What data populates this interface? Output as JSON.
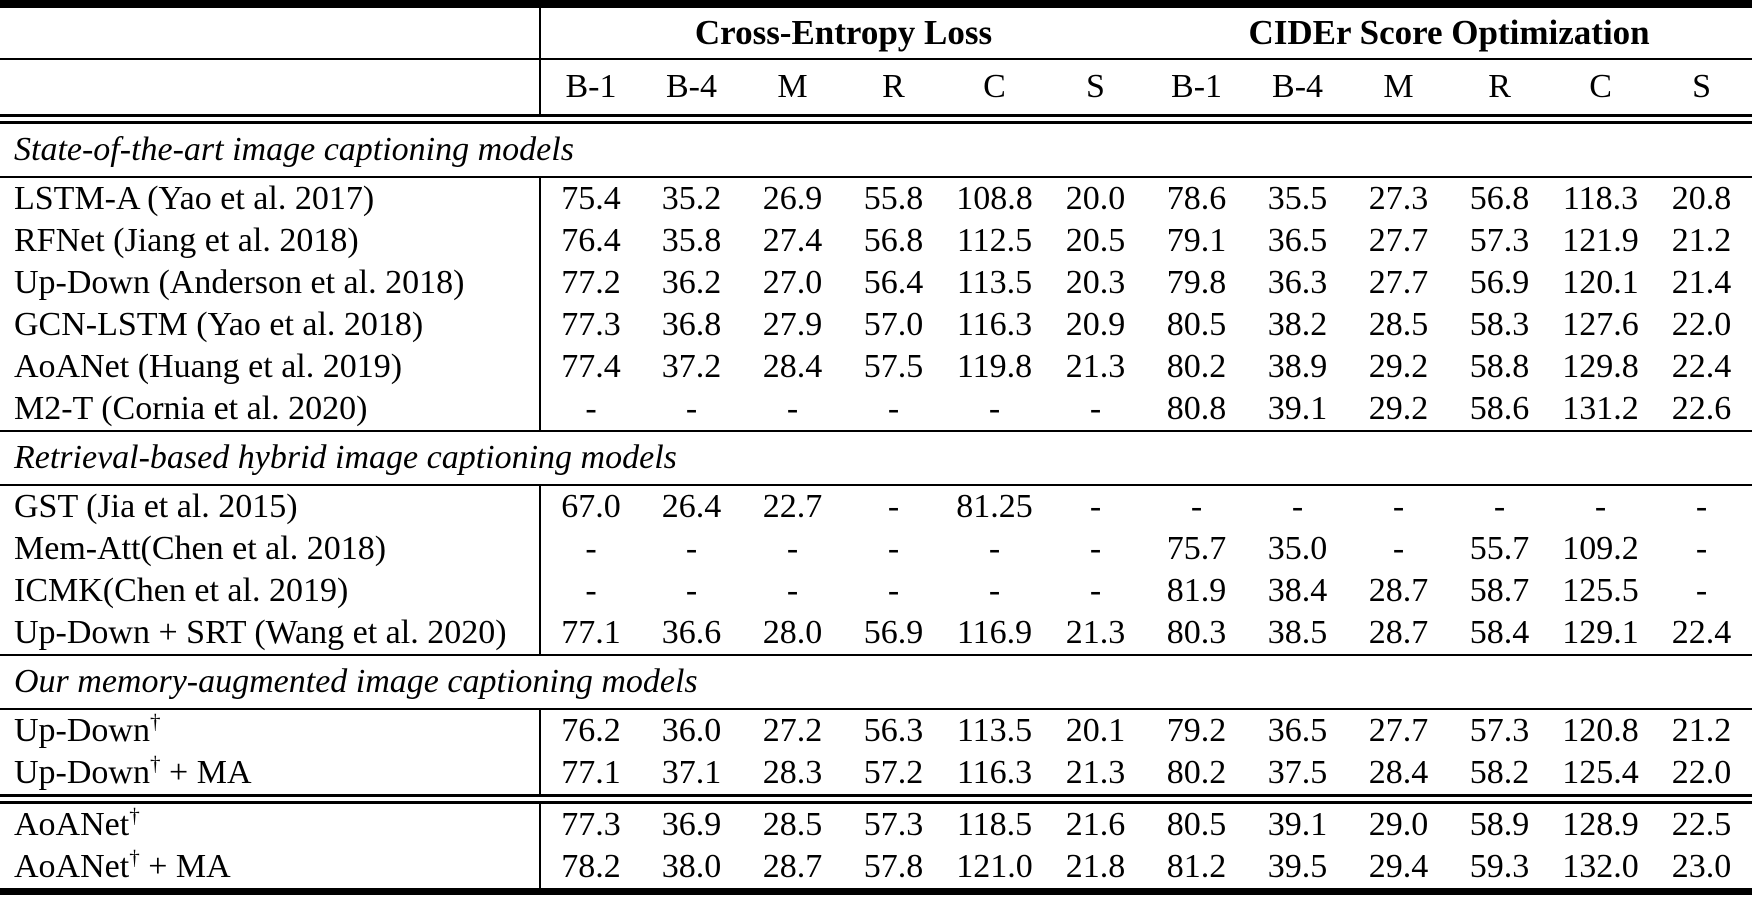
{
  "table": {
    "corner_label": "",
    "group_headers": [
      {
        "label": "Cross-Entropy Loss",
        "span": 6
      },
      {
        "label": "CIDEr Score Optimization",
        "span": 6
      }
    ],
    "metric_headers": [
      "B-1",
      "B-4",
      "M",
      "R",
      "C",
      "S"
    ],
    "dagger_symbol": "†",
    "missing_value": "-",
    "blocks": [
      {
        "type": "section",
        "title": "State-of-the-art image captioning models"
      },
      {
        "type": "rows",
        "bottom_rule": "single",
        "rows": [
          {
            "model": {
              "base": "LSTM-A (Yao et al. 2017)",
              "sup": "",
              "rest": ""
            },
            "values": [
              "75.4",
              "35.2",
              "26.9",
              "55.8",
              "108.8",
              "20.0",
              "78.6",
              "35.5",
              "27.3",
              "56.8",
              "118.3",
              "20.8"
            ]
          },
          {
            "model": {
              "base": "RFNet (Jiang et al. 2018)",
              "sup": "",
              "rest": ""
            },
            "values": [
              "76.4",
              "35.8",
              "27.4",
              "56.8",
              "112.5",
              "20.5",
              "79.1",
              "36.5",
              "27.7",
              "57.3",
              "121.9",
              "21.2"
            ]
          },
          {
            "model": {
              "base": "Up-Down (Anderson et al. 2018)",
              "sup": "",
              "rest": ""
            },
            "values": [
              "77.2",
              "36.2",
              "27.0",
              "56.4",
              "113.5",
              "20.3",
              "79.8",
              "36.3",
              "27.7",
              "56.9",
              "120.1",
              "21.4"
            ]
          },
          {
            "model": {
              "base": "GCN-LSTM (Yao et al. 2018)",
              "sup": "",
              "rest": ""
            },
            "values": [
              "77.3",
              "36.8",
              "27.9",
              "57.0",
              "116.3",
              "20.9",
              "80.5",
              "38.2",
              "28.5",
              "58.3",
              "127.6",
              "22.0"
            ]
          },
          {
            "model": {
              "base": "AoANet (Huang et al. 2019)",
              "sup": "",
              "rest": ""
            },
            "values": [
              "77.4",
              "37.2",
              "28.4",
              "57.5",
              "119.8",
              "21.3",
              "80.2",
              "38.9",
              "29.2",
              "58.8",
              "129.8",
              "22.4"
            ]
          },
          {
            "model": {
              "base": "M2-T (Cornia et al. 2020)",
              "sup": "",
              "rest": ""
            },
            "values": [
              "-",
              "-",
              "-",
              "-",
              "-",
              "-",
              "80.8",
              "39.1",
              "29.2",
              "58.6",
              "131.2",
              "22.6"
            ]
          }
        ]
      },
      {
        "type": "section",
        "title": "Retrieval-based hybrid image captioning models"
      },
      {
        "type": "rows",
        "bottom_rule": "single",
        "rows": [
          {
            "model": {
              "base": "GST (Jia et al. 2015)",
              "sup": "",
              "rest": ""
            },
            "values": [
              "67.0",
              "26.4",
              "22.7",
              "-",
              "81.25",
              "-",
              "-",
              "-",
              "-",
              "-",
              "-",
              "-"
            ]
          },
          {
            "model": {
              "base": "Mem-Att(Chen et al. 2018)",
              "sup": "",
              "rest": ""
            },
            "values": [
              "-",
              "-",
              "-",
              "-",
              "-",
              "-",
              "75.7",
              "35.0",
              "-",
              "55.7",
              "109.2",
              "-"
            ]
          },
          {
            "model": {
              "base": "ICMK(Chen et al. 2019)",
              "sup": "",
              "rest": ""
            },
            "values": [
              "-",
              "-",
              "-",
              "-",
              "-",
              "-",
              "81.9",
              "38.4",
              "28.7",
              "58.7",
              "125.5",
              "-"
            ]
          },
          {
            "model": {
              "base": "Up-Down + SRT (Wang et al. 2020)",
              "sup": "",
              "rest": ""
            },
            "values": [
              "77.1",
              "36.6",
              "28.0",
              "56.9",
              "116.9",
              "21.3",
              "80.3",
              "38.5",
              "28.7",
              "58.4",
              "129.1",
              "22.4"
            ]
          }
        ]
      },
      {
        "type": "section",
        "title": "Our memory-augmented image captioning models"
      },
      {
        "type": "rows",
        "bottom_rule": "double",
        "rows": [
          {
            "model": {
              "base": "Up-Down",
              "sup": "†",
              "rest": ""
            },
            "values": [
              "76.2",
              "36.0",
              "27.2",
              "56.3",
              "113.5",
              "20.1",
              "79.2",
              "36.5",
              "27.7",
              "57.3",
              "120.8",
              "21.2"
            ]
          },
          {
            "model": {
              "base": "Up-Down",
              "sup": "†",
              "rest": " + MA"
            },
            "values": [
              "77.1",
              "37.1",
              "28.3",
              "57.2",
              "116.3",
              "21.3",
              "80.2",
              "37.5",
              "28.4",
              "58.2",
              "125.4",
              "22.0"
            ]
          }
        ]
      },
      {
        "type": "rows",
        "bottom_rule": "none",
        "rows": [
          {
            "model": {
              "base": "AoANet",
              "sup": "†",
              "rest": ""
            },
            "values": [
              "77.3",
              "36.9",
              "28.5",
              "57.3",
              "118.5",
              "21.6",
              "80.5",
              "39.1",
              "29.0",
              "58.9",
              "128.9",
              "22.5"
            ]
          },
          {
            "model": {
              "base": "AoANet",
              "sup": "†",
              "rest": " + MA"
            },
            "values": [
              "78.2",
              "38.0",
              "28.7",
              "57.8",
              "121.0",
              "21.8",
              "81.2",
              "39.5",
              "29.4",
              "59.3",
              "132.0",
              "23.0"
            ]
          }
        ]
      }
    ]
  }
}
